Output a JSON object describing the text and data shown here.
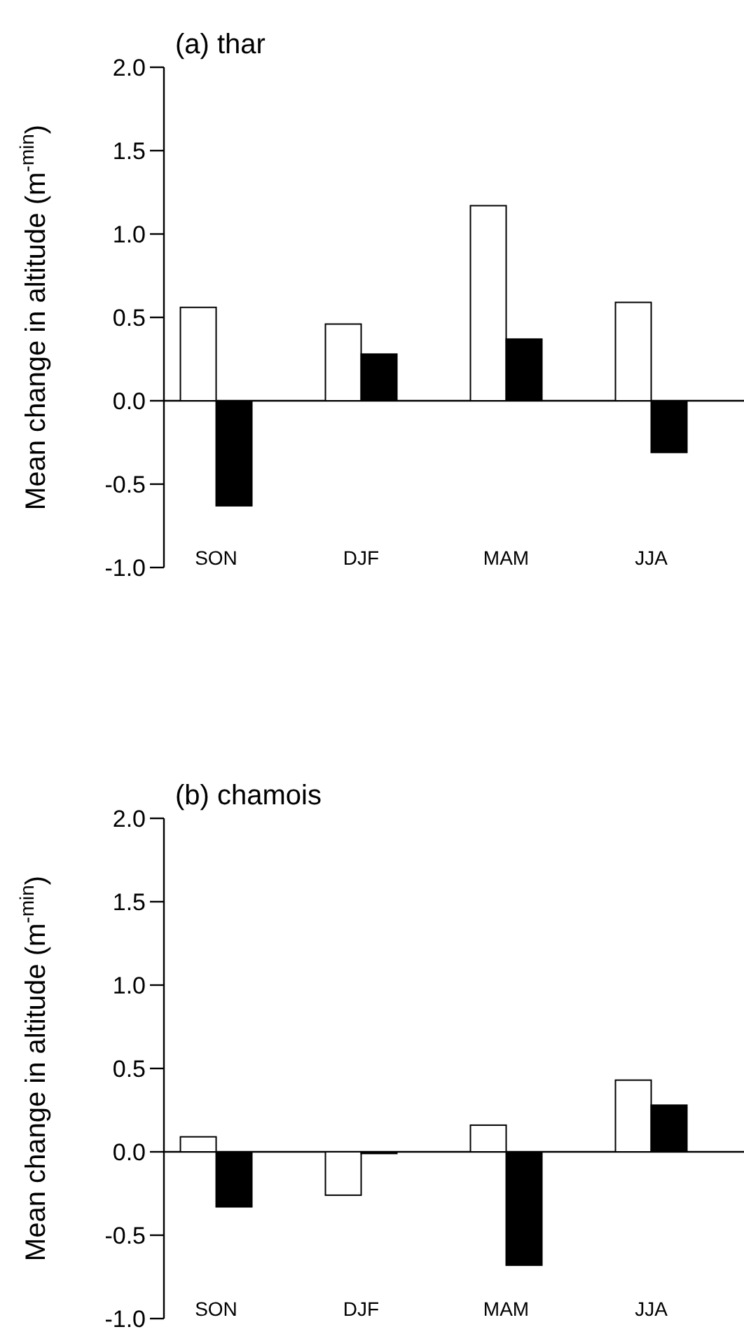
{
  "chart_data": [
    {
      "type": "bar",
      "title": "(a) thar",
      "ylabel": "Mean change in altitude (m$^{-min}$)",
      "categories": [
        "SON",
        "DJF",
        "MAM",
        "JJA"
      ],
      "series": [
        {
          "color": "#ffffff",
          "values": [
            0.56,
            0.46,
            1.17,
            0.59
          ]
        },
        {
          "color": "#000000",
          "values": [
            -0.63,
            0.28,
            0.37,
            -0.31
          ]
        }
      ],
      "ylim": [
        -1,
        2
      ],
      "yticks": [
        {
          "value": -1,
          "label": "-1.0"
        },
        {
          "value": -0.5,
          "label": "-0.5"
        },
        {
          "value": 0,
          "label": "0.0"
        },
        {
          "value": 0.5,
          "label": "0.5"
        },
        {
          "value": 1,
          "label": "1.0"
        },
        {
          "value": 1.5,
          "label": "1.5"
        },
        {
          "value": 2,
          "label": "2.0"
        }
      ]
    },
    {
      "type": "bar",
      "title": "(b) chamois",
      "ylabel": "Mean change in altitude (m$^{-min}$)",
      "categories": [
        "SON",
        "DJF",
        "MAM",
        "JJA"
      ],
      "series": [
        {
          "color": "#ffffff",
          "values": [
            0.09,
            -0.26,
            0.16,
            0.43
          ]
        },
        {
          "color": "#000000",
          "values": [
            -0.33,
            -0.01,
            -0.68,
            0.28
          ]
        }
      ],
      "ylim": [
        -1,
        2
      ],
      "yticks": [
        {
          "value": -1,
          "label": "-1.0"
        },
        {
          "value": -0.5,
          "label": "-0.5"
        },
        {
          "value": 0,
          "label": "0.0"
        },
        {
          "value": 0.5,
          "label": "0.5"
        },
        {
          "value": 1,
          "label": "1.0"
        },
        {
          "value": 1.5,
          "label": "1.5"
        },
        {
          "value": 2,
          "label": "2.0"
        }
      ]
    }
  ]
}
